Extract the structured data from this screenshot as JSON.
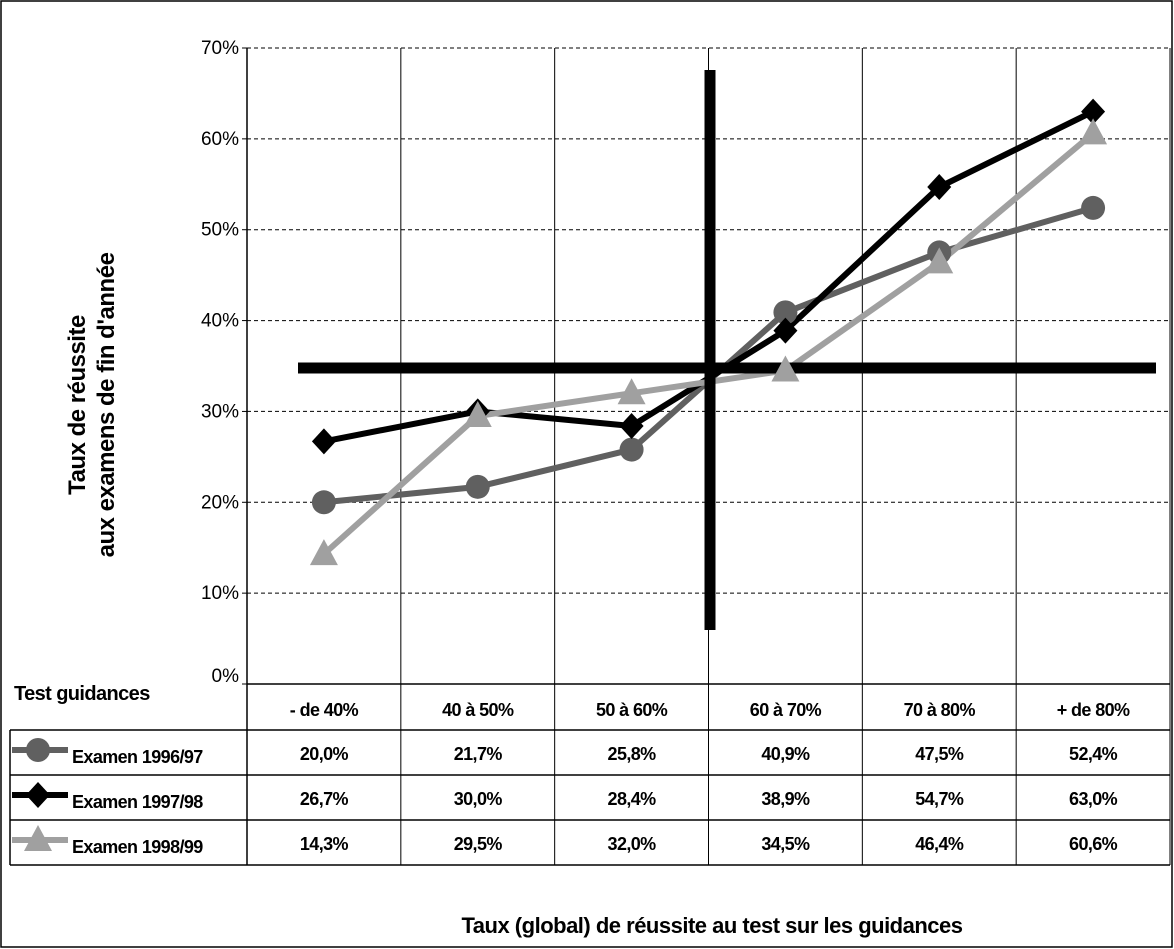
{
  "chart_data": {
    "type": "line",
    "y_title": [
      "Taux de réussite",
      "aux examens de fin d'année"
    ],
    "x_title": "Taux (global) de réussite au test sur les guidances",
    "table_header": "Test guidances",
    "categories": [
      "- de 40%",
      "40 à 50%",
      "50 à 60%",
      "60 à 70%",
      "70 à 80%",
      "+ de 80%"
    ],
    "series": [
      {
        "name": "Examen 1996/97",
        "color": "#606060",
        "marker": "circle",
        "values": [
          20.0,
          21.7,
          25.8,
          40.9,
          47.5,
          52.4
        ],
        "value_labels": [
          "20,0%",
          "21,7%",
          "25,8%",
          "40,9%",
          "47,5%",
          "52,4%"
        ]
      },
      {
        "name": "Examen 1997/98",
        "color": "#000000",
        "marker": "diamond",
        "values": [
          26.7,
          30.0,
          28.4,
          38.9,
          54.7,
          63.0
        ],
        "value_labels": [
          "26,7%",
          "30,0%",
          "28,4%",
          "38,9%",
          "54,7%",
          "63,0%"
        ]
      },
      {
        "name": "Examen 1998/99",
        "color": "#a0a0a0",
        "marker": "triangle",
        "values": [
          14.3,
          29.5,
          32.0,
          34.5,
          46.4,
          60.6
        ],
        "value_labels": [
          "14,3%",
          "29,5%",
          "32,0%",
          "34,5%",
          "46,4%",
          "60,6%"
        ]
      }
    ],
    "ylim": [
      0,
      70
    ],
    "yticks": [
      {
        "value": 0,
        "label": "0%"
      },
      {
        "value": 10,
        "label": "10%"
      },
      {
        "value": 20,
        "label": "20%"
      },
      {
        "value": 30,
        "label": "30%"
      },
      {
        "value": 40,
        "label": "40%"
      },
      {
        "value": 50,
        "label": "50%"
      },
      {
        "value": 60,
        "label": "60%"
      },
      {
        "value": 70,
        "label": "70%"
      }
    ],
    "grid": true
  }
}
